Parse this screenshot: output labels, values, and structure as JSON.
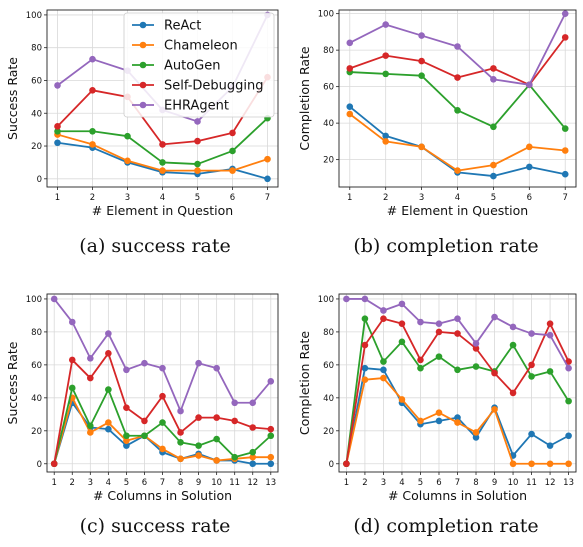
{
  "figure": {
    "colors": {
      "ReAct": "#1f77b4",
      "Chameleon": "#ff7f0e",
      "AutoGen": "#2ca02c",
      "Self-Debugging": "#d62728",
      "EHRAgent": "#9467bd"
    },
    "legend": {
      "placement": "top-left of panel (a)",
      "entries": [
        "ReAct",
        "Chameleon",
        "AutoGen",
        "Self-Debugging",
        "EHRAgent"
      ]
    }
  },
  "chart_data": [
    {
      "type": "line",
      "caption": "(a)  success rate",
      "xlabel": "# Element in Question",
      "ylabel": "Success Rate",
      "x": [
        1,
        2,
        3,
        4,
        5,
        6,
        7
      ],
      "xlim": [
        0.7,
        7.3
      ],
      "ylim": [
        -5,
        103
      ],
      "yticks": [
        0,
        20,
        40,
        60,
        80,
        100
      ],
      "grid": true,
      "series": [
        {
          "name": "ReAct",
          "values": [
            22,
            19,
            10,
            4,
            3,
            6,
            0
          ]
        },
        {
          "name": "Chameleon",
          "values": [
            27,
            21,
            11,
            5,
            5,
            5,
            12
          ]
        },
        {
          "name": "AutoGen",
          "values": [
            29,
            29,
            26,
            10,
            9,
            17,
            37
          ]
        },
        {
          "name": "Self-Debugging",
          "values": [
            32,
            54,
            50,
            21,
            23,
            28,
            62
          ]
        },
        {
          "name": "EHRAgent",
          "values": [
            57,
            73,
            66,
            42,
            35,
            56,
            100
          ]
        }
      ]
    },
    {
      "type": "line",
      "caption": "(b)  completion rate",
      "xlabel": "# Element in Question",
      "ylabel": "Completion Rate",
      "x": [
        1,
        2,
        3,
        4,
        5,
        6,
        7
      ],
      "xlim": [
        0.7,
        7.3
      ],
      "ylim": [
        5,
        102
      ],
      "yticks": [
        20,
        40,
        60,
        80,
        100
      ],
      "grid": true,
      "series": [
        {
          "name": "ReAct",
          "values": [
            49,
            33,
            27,
            13,
            11,
            16,
            12
          ]
        },
        {
          "name": "Chameleon",
          "values": [
            45,
            30,
            27,
            14,
            17,
            27,
            25
          ]
        },
        {
          "name": "AutoGen",
          "values": [
            68,
            67,
            66,
            47,
            38,
            61,
            37
          ]
        },
        {
          "name": "Self-Debugging",
          "values": [
            70,
            77,
            74,
            65,
            70,
            61,
            87
          ]
        },
        {
          "name": "EHRAgent",
          "values": [
            84,
            94,
            88,
            82,
            64,
            61,
            100
          ]
        }
      ]
    },
    {
      "type": "line",
      "caption": "(c)  success rate",
      "xlabel": "# Columns in Solution",
      "ylabel": "Success Rate",
      "x": [
        1,
        2,
        3,
        4,
        5,
        6,
        7,
        8,
        9,
        10,
        11,
        12,
        13
      ],
      "xlim": [
        0.6,
        13.4
      ],
      "ylim": [
        -5,
        103
      ],
      "yticks": [
        0,
        20,
        40,
        60,
        80,
        100
      ],
      "grid": true,
      "series": [
        {
          "name": "ReAct",
          "values": [
            0,
            37,
            22,
            21,
            11,
            17,
            7,
            3,
            6,
            2,
            2,
            0,
            0
          ]
        },
        {
          "name": "Chameleon",
          "values": [
            0,
            40,
            19,
            25,
            14,
            17,
            9,
            3,
            5,
            2,
            3,
            4,
            4
          ]
        },
        {
          "name": "AutoGen",
          "values": [
            0,
            46,
            23,
            45,
            17,
            17,
            25,
            13,
            11,
            15,
            4,
            7,
            17
          ]
        },
        {
          "name": "Self-Debugging",
          "values": [
            0,
            63,
            52,
            67,
            34,
            26,
            41,
            19,
            28,
            28,
            26,
            22,
            21
          ]
        },
        {
          "name": "EHRAgent",
          "values": [
            100,
            86,
            64,
            79,
            57,
            61,
            58,
            32,
            61,
            58,
            37,
            37,
            50
          ]
        }
      ]
    },
    {
      "type": "line",
      "caption": "(d)  completion rate",
      "xlabel": "# Columns in Solution",
      "ylabel": "Completion Rate",
      "x": [
        1,
        2,
        3,
        4,
        5,
        6,
        7,
        8,
        9,
        10,
        11,
        12,
        13
      ],
      "xlim": [
        0.6,
        13.4
      ],
      "ylim": [
        -5,
        103
      ],
      "yticks": [
        0,
        20,
        40,
        60,
        80,
        100
      ],
      "grid": true,
      "series": [
        {
          "name": "ReAct",
          "values": [
            0,
            58,
            57,
            37,
            24,
            26,
            28,
            16,
            34,
            5,
            18,
            11,
            17
          ]
        },
        {
          "name": "Chameleon",
          "values": [
            0,
            51,
            52,
            39,
            26,
            31,
            25,
            19,
            33,
            0,
            0,
            0,
            0
          ]
        },
        {
          "name": "AutoGen",
          "values": [
            0,
            88,
            62,
            74,
            58,
            65,
            57,
            59,
            56,
            72,
            53,
            56,
            38
          ]
        },
        {
          "name": "Self-Debugging",
          "values": [
            0,
            72,
            88,
            85,
            63,
            80,
            79,
            70,
            55,
            43,
            60,
            85,
            62
          ]
        },
        {
          "name": "EHRAgent",
          "values": [
            100,
            100,
            93,
            97,
            86,
            85,
            88,
            73,
            89,
            83,
            79,
            78,
            58
          ]
        }
      ]
    }
  ]
}
